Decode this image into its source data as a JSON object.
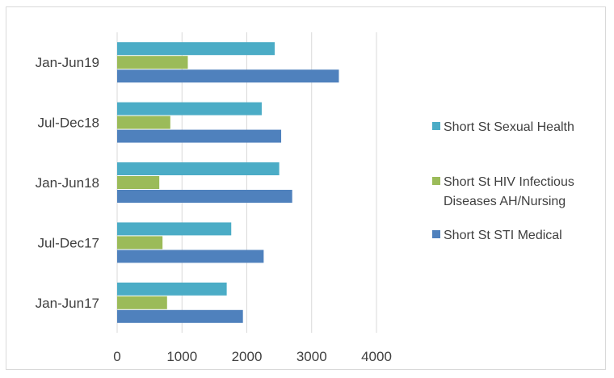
{
  "chart_data": {
    "type": "bar",
    "orientation": "horizontal",
    "categories": [
      "Jan-Jun19",
      "Jul-Dec18",
      "Jan-Jun18",
      "Jul-Dec17",
      "Jan-Jun17"
    ],
    "series": [
      {
        "name": "Short St Sexual Health",
        "color": "#4bacc6",
        "values": [
          2430,
          2230,
          2500,
          1760,
          1690
        ]
      },
      {
        "name": "Short St HIV Infectious Diseases AH/Nursing",
        "color": "#9bbb59",
        "values": [
          1090,
          820,
          650,
          700,
          770
        ]
      },
      {
        "name": "Short St STI Medical",
        "color": "#4f81bd",
        "values": [
          3420,
          2530,
          2700,
          2260,
          1940
        ]
      }
    ],
    "x_ticks": [
      "0",
      "1000",
      "2000",
      "3000",
      "4000"
    ],
    "xlim": [
      0,
      4000
    ],
    "grid": "vertical",
    "legend": {
      "position": "right",
      "entries": [
        {
          "lines": [
            "Short St Sexual Health"
          ],
          "color": "#4bacc6"
        },
        {
          "lines": [
            "Short St HIV Infectious",
            "Diseases AH/Nursing"
          ],
          "color": "#9bbb59"
        },
        {
          "lines": [
            "Short St STI Medical"
          ],
          "color": "#4f81bd"
        }
      ]
    },
    "title": "",
    "xlabel": "",
    "ylabel": ""
  }
}
